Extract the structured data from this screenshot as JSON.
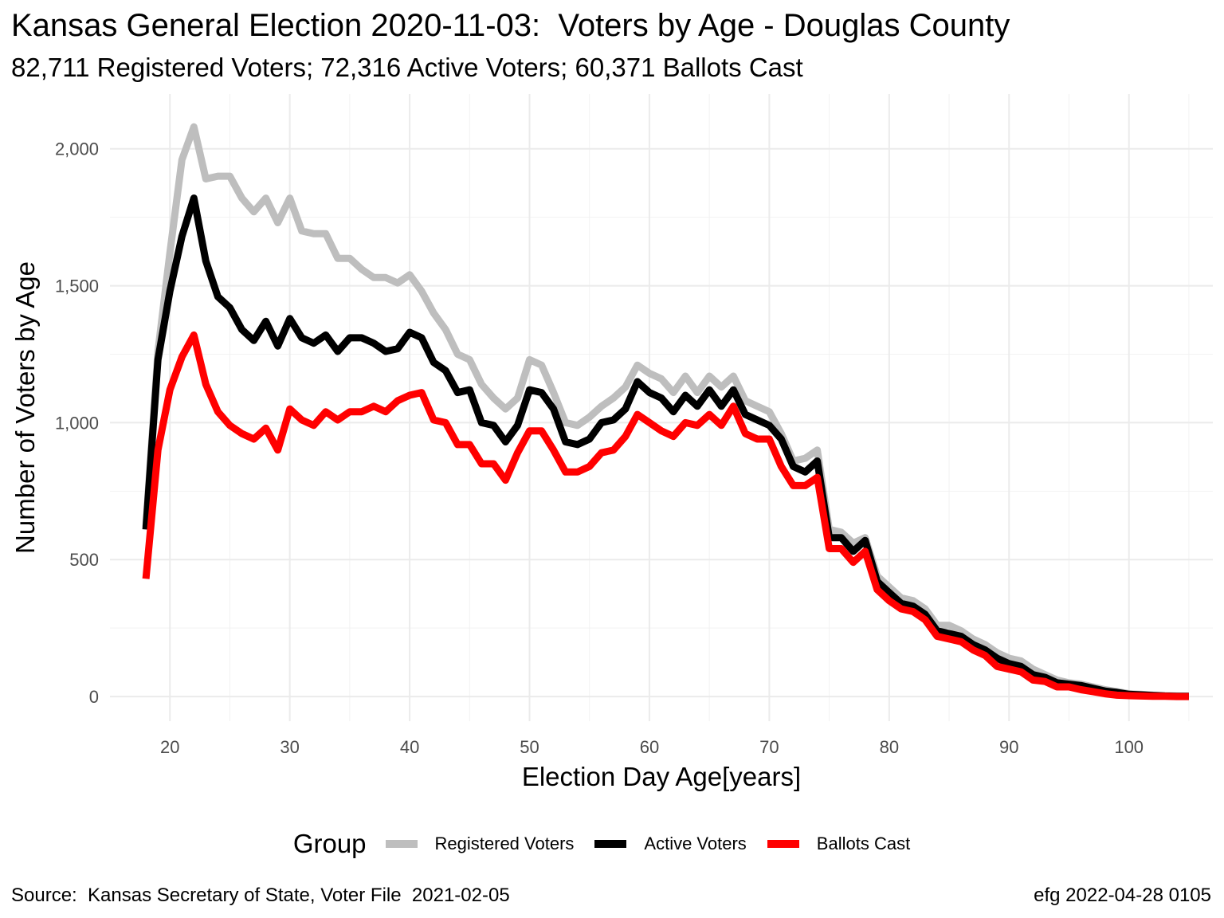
{
  "title": "Kansas General Election 2020-11-03:  Voters by Age - Douglas County",
  "subtitle": "82,711 Registered Voters; 72,316 Active Voters; 60,371 Ballots Cast",
  "caption_left": "Source:  Kansas Secretary of State, Voter File  2021-02-05",
  "caption_right": "efg 2022-04-28 0105",
  "legend": {
    "title": "Group",
    "items": [
      {
        "label": "Registered Voters",
        "color": "#BEBEBE"
      },
      {
        "label": "Active Voters",
        "color": "#000000"
      },
      {
        "label": "Ballots Cast",
        "color": "#FF0000"
      }
    ]
  },
  "chart_data": {
    "type": "line",
    "xlabel": "Election Day Age[years]",
    "ylabel": "Number of Voters by Age",
    "xlim": [
      15,
      107
    ],
    "ylim": [
      -90,
      2200
    ],
    "xticks": [
      20,
      30,
      40,
      50,
      60,
      70,
      80,
      90,
      100
    ],
    "yticks": [
      0,
      500,
      1000,
      1500,
      2000
    ],
    "ytick_labels": [
      "0",
      "500",
      "1,000",
      "1,500",
      "2,000"
    ],
    "grid": true,
    "legend_position": "bottom",
    "x": [
      18,
      19,
      20,
      21,
      22,
      23,
      24,
      25,
      26,
      27,
      28,
      29,
      30,
      31,
      32,
      33,
      34,
      35,
      36,
      37,
      38,
      39,
      40,
      41,
      42,
      43,
      44,
      45,
      46,
      47,
      48,
      49,
      50,
      51,
      52,
      53,
      54,
      55,
      56,
      57,
      58,
      59,
      60,
      61,
      62,
      63,
      64,
      65,
      66,
      67,
      68,
      69,
      70,
      71,
      72,
      73,
      74,
      75,
      76,
      77,
      78,
      79,
      80,
      81,
      82,
      83,
      84,
      85,
      86,
      87,
      88,
      89,
      90,
      91,
      92,
      93,
      94,
      95,
      96,
      97,
      98,
      99,
      100,
      101,
      102,
      103,
      104,
      105
    ],
    "series": [
      {
        "name": "Registered Voters",
        "color": "#BEBEBE",
        "values": [
          620,
          1260,
          1620,
          1960,
          2080,
          1890,
          1900,
          1900,
          1820,
          1770,
          1820,
          1730,
          1820,
          1700,
          1690,
          1690,
          1600,
          1600,
          1560,
          1530,
          1530,
          1510,
          1540,
          1480,
          1400,
          1340,
          1250,
          1230,
          1140,
          1090,
          1050,
          1090,
          1230,
          1210,
          1110,
          1000,
          990,
          1020,
          1060,
          1090,
          1130,
          1210,
          1180,
          1160,
          1110,
          1170,
          1110,
          1170,
          1130,
          1170,
          1080,
          1060,
          1040,
          960,
          860,
          870,
          900,
          610,
          600,
          560,
          580,
          440,
          400,
          360,
          350,
          320,
          260,
          260,
          240,
          210,
          190,
          160,
          140,
          130,
          100,
          80,
          60,
          50,
          45,
          35,
          25,
          18,
          10,
          8,
          5,
          3,
          2,
          1
        ]
      },
      {
        "name": "Active Voters",
        "color": "#000000",
        "values": [
          610,
          1230,
          1480,
          1680,
          1820,
          1590,
          1460,
          1420,
          1340,
          1300,
          1370,
          1280,
          1380,
          1310,
          1290,
          1320,
          1260,
          1310,
          1310,
          1290,
          1260,
          1270,
          1330,
          1310,
          1220,
          1190,
          1110,
          1120,
          1000,
          990,
          930,
          990,
          1120,
          1110,
          1050,
          930,
          920,
          940,
          1000,
          1010,
          1050,
          1150,
          1110,
          1090,
          1040,
          1100,
          1060,
          1120,
          1060,
          1120,
          1030,
          1010,
          990,
          940,
          840,
          820,
          860,
          580,
          580,
          530,
          570,
          420,
          380,
          340,
          330,
          300,
          240,
          230,
          220,
          190,
          170,
          140,
          120,
          110,
          80,
          70,
          50,
          45,
          40,
          30,
          20,
          15,
          8,
          6,
          4,
          2,
          1,
          1
        ]
      },
      {
        "name": "Ballots Cast",
        "color": "#FF0000",
        "values": [
          430,
          900,
          1120,
          1240,
          1320,
          1140,
          1040,
          990,
          960,
          940,
          980,
          900,
          1050,
          1010,
          990,
          1040,
          1010,
          1040,
          1040,
          1060,
          1040,
          1080,
          1100,
          1110,
          1010,
          1000,
          920,
          920,
          850,
          850,
          790,
          890,
          970,
          970,
          900,
          820,
          820,
          840,
          890,
          900,
          950,
          1030,
          1000,
          970,
          950,
          1000,
          990,
          1030,
          990,
          1060,
          960,
          940,
          940,
          840,
          770,
          770,
          800,
          540,
          540,
          490,
          530,
          390,
          350,
          320,
          310,
          280,
          220,
          210,
          200,
          170,
          150,
          110,
          100,
          90,
          60,
          55,
          35,
          35,
          25,
          18,
          10,
          5,
          3,
          2,
          1,
          1,
          0,
          0
        ]
      }
    ]
  }
}
